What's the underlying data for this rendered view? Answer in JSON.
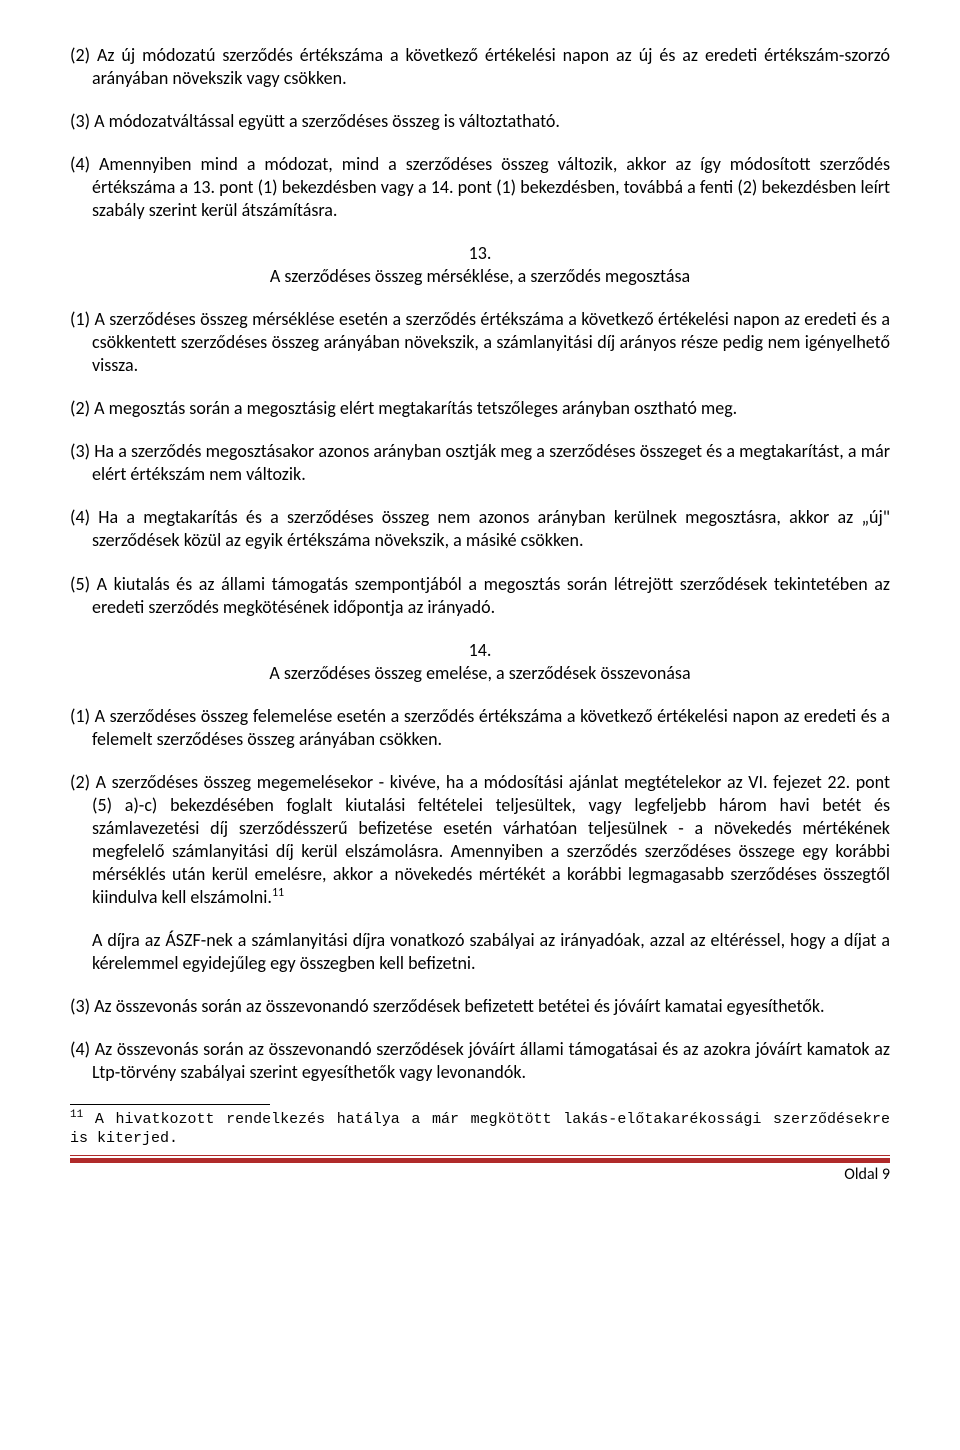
{
  "paragraphs": {
    "p1": "(2) Az új módozatú szerződés értékszáma a következő értékelési napon az új és az eredeti értékszám-szorzó arányában növekszik vagy csökken.",
    "p2": "(3) A módozatváltással együtt a szerződéses összeg is változtatható.",
    "p3": "(4) Amennyiben mind a módozat, mind a szerződéses összeg változik, akkor az így módosított szerződés értékszáma a 13. pont (1) bekezdésben vagy a 14. pont (1) bekezdésben, továbbá a fenti (2) bekezdésben leírt szabály szerint kerül átszámításra.",
    "s13_num": "13.",
    "s13_title": "A szerződéses összeg mérséklése, a szerződés megosztása",
    "p4": "(1) A szerződéses összeg mérséklése esetén a szerződés értékszáma a következő értékelési napon az eredeti és a csökkentett szerződéses összeg arányában növekszik, a számlanyitási díj arányos része pedig nem igényelhető vissza.",
    "p5": "(2) A megosztás során a megosztásig elért megtakarítás tetszőleges arányban osztható meg.",
    "p6": "(3) Ha a szerződés megosztásakor azonos arányban osztják meg a szerződéses összeget és a megtakarítást, a már elért értékszám nem változik.",
    "p7": "(4) Ha a megtakarítás és a szerződéses összeg nem azonos arányban kerülnek megosztásra, akkor az „új\" szerződések közül az egyik értékszáma növekszik, a másiké csökken.",
    "p8": "(5) A kiutalás és az állami támogatás szempontjából a megosztás során létrejött szerződések tekintetében az eredeti szerződés megkötésének időpontja az irányadó.",
    "s14_num": "14.",
    "s14_title": "A szerződéses összeg emelése, a szerződések összevonása",
    "p9": "(1) A szerződéses összeg felemelése esetén a szerződés értékszáma a következő értékelési napon az eredeti és a felemelt szerződéses összeg arányában csökken.",
    "p10a": "(2) A szerződéses összeg megemelésekor - kivéve, ha a módosítási ajánlat megtételekor az VI. fejezet 22. pont (5) a)-c) bekezdésében foglalt kiutalási feltételei teljesültek, vagy legfeljebb három havi betét és számlavezetési díj szerződésszerű befizetése esetén várhatóan teljesülnek - a növekedés mértékének megfelelő számlanyitási díj kerül elszámolásra. Amennyiben a szerződés szerződéses összege egy korábbi mérséklés után kerül emelésre, akkor a növekedés mértékét a korábbi legmagasabb szerződéses összegtől kiindulva kell elszámolni.",
    "p10b": "A díjra az ÁSZF-nek a számlanyitási díjra vonatkozó szabályai az irányadóak, azzal az eltéréssel, hogy a díjat a kérelemmel egyidejűleg egy összegben kell befizetni.",
    "p11": "(3) Az összevonás során az összevonandó szerződések befizetett betétei és jóváírt kamatai egyesíthetők.",
    "p12": "(4) Az összevonás során az összevonandó szerződések jóváírt állami támogatásai és az azokra jóváírt kamatok az Ltp-törvény szabályai szerint egyesíthetők vagy levonandók."
  },
  "footnote": {
    "marker": "11",
    "text": "A hivatkozott rendelkezés hatálya a már megkötött lakás-előtakarékossági szerződésekre is kiterjed."
  },
  "footer": "Oldal 9"
}
